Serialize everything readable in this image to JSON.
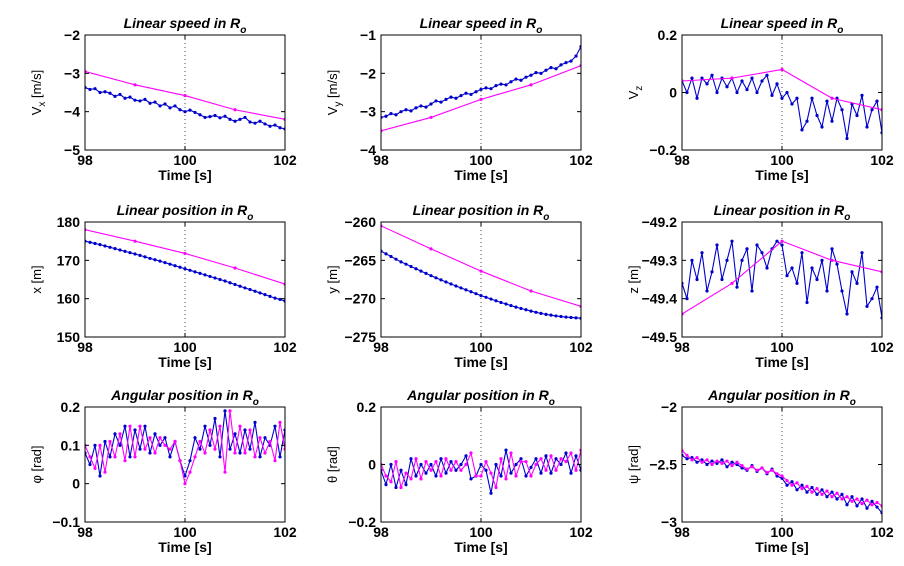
{
  "chart_data": [
    {
      "type": "line",
      "title": "Linear speed in R",
      "title_sub": "o",
      "ylabel": "V",
      "ylabel_sub": "x",
      "ylabel_unit": " [m/s]",
      "xlabel": "Time [s]",
      "xlim": [
        98,
        102
      ],
      "ylim": [
        -5,
        -2
      ],
      "xticks": [
        98,
        100,
        102
      ],
      "yticks": [
        -5,
        -4,
        -3,
        -2
      ],
      "grid": "x-only",
      "series": [
        {
          "color": "#0000cc",
          "x_start": 98,
          "x_step": 0.1,
          "values": [
            -3.37,
            -3.42,
            -3.4,
            -3.5,
            -3.48,
            -3.52,
            -3.6,
            -3.55,
            -3.65,
            -3.62,
            -3.7,
            -3.72,
            -3.68,
            -3.78,
            -3.75,
            -3.85,
            -3.8,
            -3.9,
            -3.85,
            -3.95,
            -4.0,
            -3.96,
            -4.02,
            -4.08,
            -4.15,
            -4.13,
            -4.1,
            -4.16,
            -4.12,
            -4.2,
            -4.25,
            -4.2,
            -4.15,
            -4.27,
            -4.3,
            -4.25,
            -4.32,
            -4.38,
            -4.35,
            -4.42,
            -4.45
          ]
        },
        {
          "color": "#ff00ff",
          "x_start": 98,
          "x_step": 1,
          "values": [
            -2.95,
            -3.3,
            -3.58,
            -3.95,
            -4.2
          ]
        }
      ]
    },
    {
      "type": "line",
      "title": "Linear speed in R",
      "title_sub": "o",
      "ylabel": "V",
      "ylabel_sub": "y",
      "ylabel_unit": " [m/s]",
      "xlabel": "Time [s]",
      "xlim": [
        98,
        102
      ],
      "ylim": [
        -4,
        -1
      ],
      "xticks": [
        98,
        100,
        102
      ],
      "yticks": [
        -4,
        -3,
        -2,
        -1
      ],
      "grid": "x-only",
      "series": [
        {
          "color": "#0000cc",
          "x_start": 98,
          "x_step": 0.1,
          "values": [
            -3.15,
            -3.12,
            -3.05,
            -3.08,
            -3.0,
            -2.95,
            -2.98,
            -2.9,
            -2.85,
            -2.88,
            -2.8,
            -2.72,
            -2.75,
            -2.68,
            -2.62,
            -2.65,
            -2.58,
            -2.52,
            -2.55,
            -2.48,
            -2.42,
            -2.38,
            -2.4,
            -2.32,
            -2.28,
            -2.3,
            -2.22,
            -2.15,
            -2.18,
            -2.1,
            -2.05,
            -1.98,
            -2.0,
            -1.92,
            -1.85,
            -1.88,
            -1.78,
            -1.72,
            -1.68,
            -1.55,
            -1.3
          ]
        },
        {
          "color": "#ff00ff",
          "x_start": 98,
          "x_step": 1,
          "values": [
            -3.5,
            -3.15,
            -2.68,
            -2.3,
            -1.8
          ]
        }
      ]
    },
    {
      "type": "line",
      "title": "Linear speed in R",
      "title_sub": "o",
      "ylabel": "V",
      "ylabel_sub": "z",
      "ylabel_unit": "",
      "xlabel": "Time [s]",
      "xlim": [
        98,
        102
      ],
      "ylim": [
        -0.2,
        0.2
      ],
      "xticks": [
        98,
        100,
        102
      ],
      "yticks": [
        -0.2,
        0,
        0.2
      ],
      "grid": "x-only",
      "series": [
        {
          "color": "#0000cc",
          "x_start": 98,
          "x_step": 0.1,
          "values": [
            0.04,
            0.0,
            0.05,
            -0.02,
            0.05,
            0.03,
            0.06,
            0.0,
            0.05,
            0.02,
            0.05,
            0.0,
            0.04,
            0.01,
            0.05,
            0.0,
            0.04,
            0.06,
            -0.01,
            0.03,
            -0.02,
            0.0,
            -0.04,
            -0.02,
            -0.13,
            -0.1,
            -0.02,
            -0.08,
            -0.12,
            -0.03,
            -0.1,
            -0.02,
            -0.06,
            -0.16,
            -0.04,
            -0.08,
            -0.01,
            -0.12,
            -0.06,
            -0.03,
            -0.14
          ]
        },
        {
          "color": "#ff00ff",
          "x_start": 98,
          "x_step": 1,
          "values": [
            0.04,
            0.05,
            0.08,
            -0.02,
            -0.06
          ]
        }
      ]
    },
    {
      "type": "line",
      "title": "Linear position in R",
      "title_sub": "o",
      "ylabel": "x [m]",
      "ylabel_sub": "",
      "ylabel_unit": "",
      "xlabel": "Time [s]",
      "xlim": [
        98,
        102
      ],
      "ylim": [
        150,
        180
      ],
      "xticks": [
        98,
        100,
        102
      ],
      "yticks": [
        150,
        160,
        170,
        180
      ],
      "grid": "x-only",
      "series": [
        {
          "color": "#0000cc",
          "x_start": 98,
          "x_step": 0.1,
          "values": [
            175.0,
            174.7,
            174.4,
            174.1,
            173.75,
            173.4,
            173.05,
            172.7,
            172.35,
            172.0,
            171.65,
            171.3,
            170.9,
            170.5,
            170.15,
            169.8,
            169.4,
            169.0,
            168.6,
            168.2,
            167.8,
            167.4,
            167.0,
            166.6,
            166.2,
            165.8,
            165.4,
            165.0,
            164.6,
            164.15,
            163.7,
            163.25,
            162.8,
            162.4,
            161.95,
            161.5,
            161.05,
            160.6,
            160.15,
            159.8,
            159.4
          ]
        },
        {
          "color": "#ff00ff",
          "x_start": 98,
          "x_step": 1,
          "values": [
            178.0,
            175.0,
            171.8,
            168.0,
            163.8
          ]
        }
      ]
    },
    {
      "type": "line",
      "title": "Linear position in R",
      "title_sub": "o",
      "ylabel": "y [m]",
      "ylabel_sub": "",
      "ylabel_unit": "",
      "xlabel": "Time [s]",
      "xlim": [
        98,
        102
      ],
      "ylim": [
        -275,
        -260
      ],
      "xticks": [
        98,
        100,
        102
      ],
      "yticks": [
        -275,
        -270,
        -265,
        -260
      ],
      "grid": "x-only",
      "series": [
        {
          "color": "#0000cc",
          "x_start": 98,
          "x_step": 0.1,
          "values": [
            -263.8,
            -264.15,
            -264.5,
            -264.85,
            -265.2,
            -265.5,
            -265.8,
            -266.1,
            -266.4,
            -266.7,
            -267.0,
            -267.28,
            -267.55,
            -267.82,
            -268.08,
            -268.35,
            -268.6,
            -268.85,
            -269.1,
            -269.35,
            -269.6,
            -269.82,
            -270.05,
            -270.27,
            -270.5,
            -270.7,
            -270.9,
            -271.1,
            -271.28,
            -271.45,
            -271.62,
            -271.78,
            -271.92,
            -272.05,
            -272.15,
            -272.25,
            -272.33,
            -272.4,
            -272.45,
            -272.5,
            -272.55
          ]
        },
        {
          "color": "#ff00ff",
          "x_start": 98,
          "x_step": 1,
          "values": [
            -260.5,
            -263.5,
            -266.4,
            -269.0,
            -271.0
          ]
        }
      ]
    },
    {
      "type": "line",
      "title": "Linear position in R",
      "title_sub": "o",
      "ylabel": "z [m]",
      "ylabel_sub": "",
      "ylabel_unit": "",
      "xlabel": "Time [s]",
      "xlim": [
        98,
        102
      ],
      "ylim": [
        -49.5,
        -49.2
      ],
      "xticks": [
        98,
        100,
        102
      ],
      "yticks": [
        -49.5,
        -49.4,
        -49.3,
        -49.2
      ],
      "grid": "x-only",
      "series": [
        {
          "color": "#0000cc",
          "x_start": 98,
          "x_step": 0.1,
          "values": [
            -49.36,
            -49.4,
            -49.3,
            -49.35,
            -49.28,
            -49.38,
            -49.33,
            -49.26,
            -49.35,
            -49.3,
            -49.25,
            -49.37,
            -49.3,
            -49.27,
            -49.38,
            -49.26,
            -49.28,
            -49.32,
            -49.27,
            -49.25,
            -49.26,
            -49.34,
            -49.32,
            -49.36,
            -49.28,
            -49.41,
            -49.32,
            -49.35,
            -49.3,
            -49.38,
            -49.27,
            -49.31,
            -49.38,
            -49.44,
            -49.33,
            -49.36,
            -49.28,
            -49.42,
            -49.4,
            -49.37,
            -49.45
          ]
        },
        {
          "color": "#ff00ff",
          "x_start": 98,
          "x_step": 1,
          "values": [
            -49.44,
            -49.36,
            -49.25,
            -49.3,
            -49.33
          ]
        }
      ]
    },
    {
      "type": "line",
      "title": "Angular position in R",
      "title_sub": "o",
      "ylabel": "φ [rad]",
      "ylabel_sub": "",
      "ylabel_unit": "",
      "xlabel": "Time [s]",
      "xlim": [
        98,
        102
      ],
      "ylim": [
        -0.1,
        0.2
      ],
      "xticks": [
        98,
        100,
        102
      ],
      "yticks": [
        -0.1,
        0,
        0.1,
        0.2
      ],
      "grid": "x-only",
      "series": [
        {
          "color": "#0000cc",
          "x_start": 98,
          "x_step": 0.1,
          "values": [
            0.08,
            0.05,
            0.1,
            0.02,
            0.11,
            0.07,
            0.13,
            0.1,
            0.15,
            0.07,
            0.14,
            0.09,
            0.15,
            0.08,
            0.13,
            0.1,
            0.12,
            0.07,
            0.11,
            0.06,
            0.02,
            0.06,
            0.12,
            0.09,
            0.15,
            0.1,
            0.17,
            0.07,
            0.19,
            0.09,
            0.13,
            0.08,
            0.14,
            0.09,
            0.16,
            0.07,
            0.12,
            0.1,
            0.15,
            0.07,
            0.14
          ]
        },
        {
          "color": "#ff00ff",
          "x_start": 98,
          "x_step": 0.1,
          "values": [
            0.1,
            0.07,
            0.04,
            0.1,
            0.03,
            0.11,
            0.07,
            0.13,
            0.06,
            0.15,
            0.07,
            0.15,
            0.09,
            0.12,
            0.08,
            0.12,
            0.1,
            0.09,
            0.11,
            0.06,
            0.0,
            0.03,
            0.07,
            0.11,
            0.08,
            0.14,
            0.09,
            0.15,
            0.03,
            0.19,
            0.08,
            0.15,
            0.08,
            0.14,
            0.07,
            0.12,
            0.08,
            0.11,
            0.06,
            0.16,
            0.09
          ]
        }
      ]
    },
    {
      "type": "line",
      "title": "Angular position in R",
      "title_sub": "o",
      "ylabel": "θ [rad]",
      "ylabel_sub": "",
      "ylabel_unit": "",
      "xlabel": "Time [s]",
      "xlim": [
        98,
        102
      ],
      "ylim": [
        -0.2,
        0.2
      ],
      "xticks": [
        98,
        100,
        102
      ],
      "yticks": [
        -0.2,
        0,
        0.2
      ],
      "grid": "x-only",
      "series": [
        {
          "color": "#0000cc",
          "x_start": 98,
          "x_step": 0.1,
          "values": [
            -0.02,
            -0.07,
            0.0,
            -0.08,
            -0.02,
            -0.07,
            0.02,
            -0.04,
            0.0,
            -0.03,
            0.0,
            -0.04,
            0.02,
            -0.03,
            0.01,
            -0.02,
            0.0,
            0.03,
            -0.05,
            -0.04,
            0.0,
            -0.02,
            -0.1,
            0.0,
            -0.04,
            0.05,
            -0.03,
            0.0,
            0.02,
            -0.04,
            -0.01,
            0.02,
            -0.03,
            0.03,
            -0.03,
            0.02,
            0.0,
            0.04,
            -0.03,
            0.03,
            -0.02
          ]
        },
        {
          "color": "#ff00ff",
          "x_start": 98,
          "x_step": 0.1,
          "values": [
            0.0,
            -0.04,
            -0.06,
            0.01,
            -0.08,
            -0.03,
            -0.05,
            0.02,
            -0.05,
            0.01,
            -0.02,
            0.01,
            -0.04,
            0.02,
            -0.02,
            0.01,
            -0.02,
            0.0,
            0.04,
            -0.04,
            -0.04,
            0.01,
            -0.03,
            -0.08,
            0.02,
            -0.05,
            0.04,
            -0.04,
            0.01,
            0.01,
            -0.04,
            0.0,
            0.02,
            -0.02,
            0.03,
            -0.02,
            0.02,
            0.01,
            0.04,
            -0.02,
            0.05
          ]
        }
      ]
    },
    {
      "type": "line",
      "title": "Angular position in R",
      "title_sub": "o",
      "ylabel": "ψ [rad]",
      "ylabel_sub": "",
      "ylabel_unit": "",
      "xlabel": "Time [s]",
      "xlim": [
        98,
        102
      ],
      "ylim": [
        -3,
        -2
      ],
      "xticks": [
        98,
        100,
        102
      ],
      "yticks": [
        -3,
        -2.5,
        -2
      ],
      "grid": "x-only",
      "series": [
        {
          "color": "#0000cc",
          "x_start": 98,
          "x_step": 0.1,
          "values": [
            -2.42,
            -2.45,
            -2.44,
            -2.48,
            -2.46,
            -2.5,
            -2.47,
            -2.49,
            -2.46,
            -2.52,
            -2.48,
            -2.5,
            -2.53,
            -2.55,
            -2.51,
            -2.56,
            -2.53,
            -2.58,
            -2.54,
            -2.6,
            -2.62,
            -2.68,
            -2.65,
            -2.72,
            -2.68,
            -2.74,
            -2.7,
            -2.76,
            -2.72,
            -2.78,
            -2.74,
            -2.8,
            -2.76,
            -2.85,
            -2.78,
            -2.86,
            -2.8,
            -2.88,
            -2.82,
            -2.87,
            -2.92
          ]
        },
        {
          "color": "#ff00ff",
          "x_start": 98,
          "x_step": 0.1,
          "values": [
            -2.38,
            -2.42,
            -2.46,
            -2.44,
            -2.48,
            -2.46,
            -2.5,
            -2.47,
            -2.49,
            -2.47,
            -2.51,
            -2.48,
            -2.51,
            -2.54,
            -2.52,
            -2.55,
            -2.53,
            -2.57,
            -2.55,
            -2.58,
            -2.6,
            -2.64,
            -2.68,
            -2.66,
            -2.71,
            -2.69,
            -2.74,
            -2.71,
            -2.76,
            -2.73,
            -2.78,
            -2.75,
            -2.8,
            -2.78,
            -2.82,
            -2.8,
            -2.84,
            -2.81,
            -2.85,
            -2.83,
            -2.86
          ]
        }
      ]
    }
  ]
}
